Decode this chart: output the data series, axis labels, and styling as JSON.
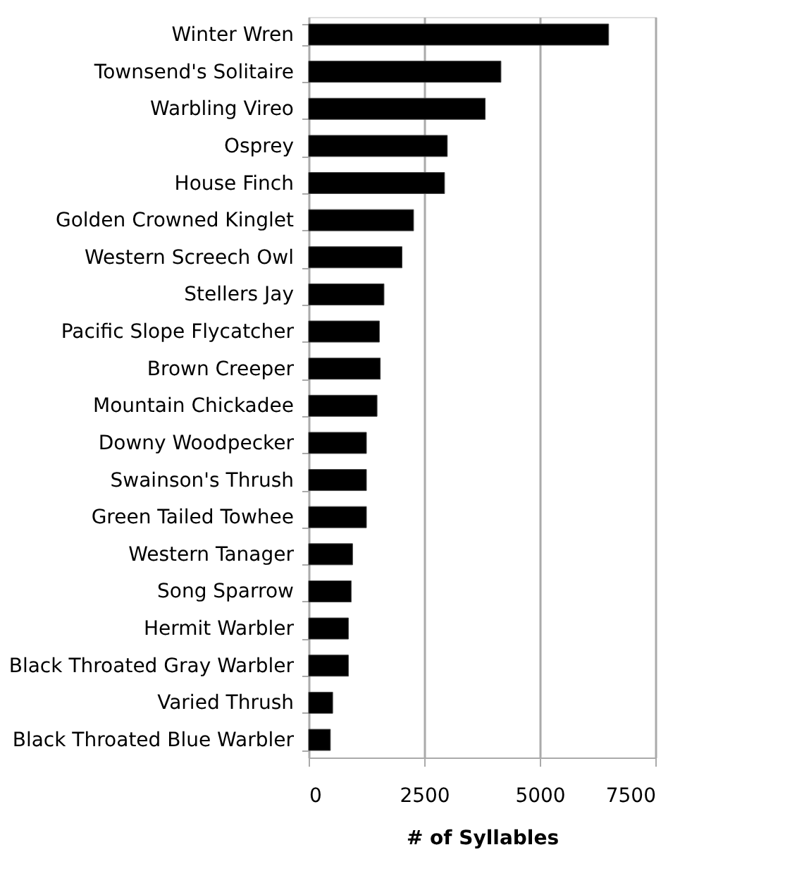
{
  "chart_data": {
    "type": "bar",
    "orientation": "horizontal",
    "xlabel": "# of Syllables",
    "categories": [
      "Winter Wren",
      "Townsend's Solitaire",
      "Warbling Vireo",
      "Osprey",
      "House Finch",
      "Golden Crowned Kinglet",
      "Western Screech Owl",
      "Stellers Jay",
      "Pacific Slope Flycatcher",
      "Brown Creeper",
      "Mountain Chickadee",
      "Downy Woodpecker",
      "Swainson's Thrush",
      "Green Tailed Towhee",
      "Western Tanager",
      "Song Sparrow",
      "Hermit Warbler",
      "Black Throated Gray Warbler",
      "Varied Thrush",
      "Black Throated Blue Warbler"
    ],
    "values": [
      6490,
      4160,
      3820,
      3000,
      2940,
      2270,
      2020,
      1630,
      1530,
      1550,
      1480,
      1250,
      1250,
      1250,
      950,
      920,
      860,
      860,
      520,
      470
    ],
    "color": "#000000",
    "xlim": [
      0,
      7500
    ],
    "xticks": [
      0,
      2500,
      5000,
      7500
    ],
    "grid": "x"
  }
}
